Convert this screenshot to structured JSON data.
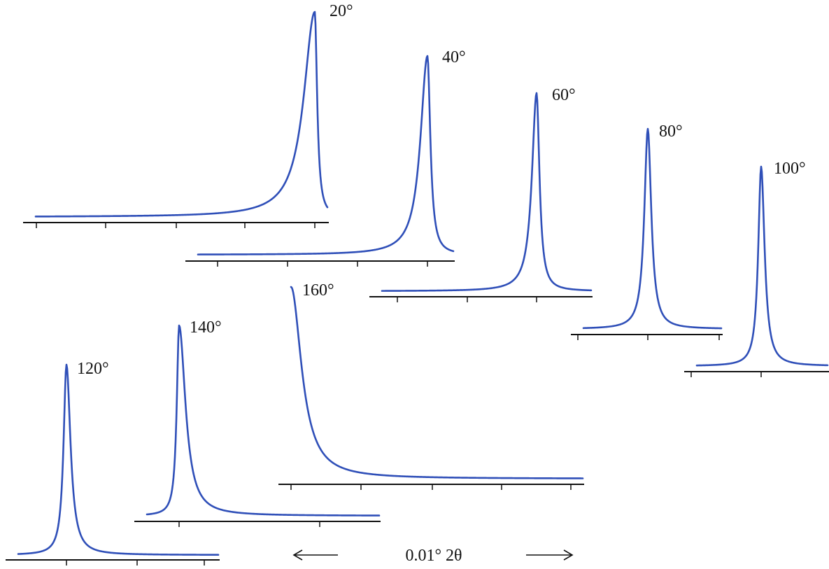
{
  "chart_data": {
    "type": "line",
    "title": "",
    "xlabel": "",
    "ylabel": "",
    "colors": {
      "curve": "#2f4fb8",
      "axis": "#111111"
    },
    "series": [
      {
        "name": "20°",
        "label": "20°",
        "left_tail": 0.19,
        "right_tail": 0.04
      },
      {
        "name": "40°",
        "label": "40°",
        "left_tail": 0.12,
        "right_tail": 0.05
      },
      {
        "name": "60°",
        "label": "60°",
        "left_tail": 0.08,
        "right_tail": 0.05
      },
      {
        "name": "80°",
        "label": "80°",
        "left_tail": 0.06,
        "right_tail": 0.06
      },
      {
        "name": "100°",
        "label": "100°",
        "left_tail": 0.05,
        "right_tail": 0.06
      },
      {
        "name": "120°",
        "label": "120°",
        "left_tail": 0.05,
        "right_tail": 0.07
      },
      {
        "name": "140°",
        "label": "140°",
        "left_tail": 0.04,
        "right_tail": 0.11
      },
      {
        "name": "160°",
        "label": "160°",
        "left_tail": 0.03,
        "right_tail": 0.18
      }
    ],
    "scale_bar": {
      "label": "0.01° 2θ"
    }
  }
}
